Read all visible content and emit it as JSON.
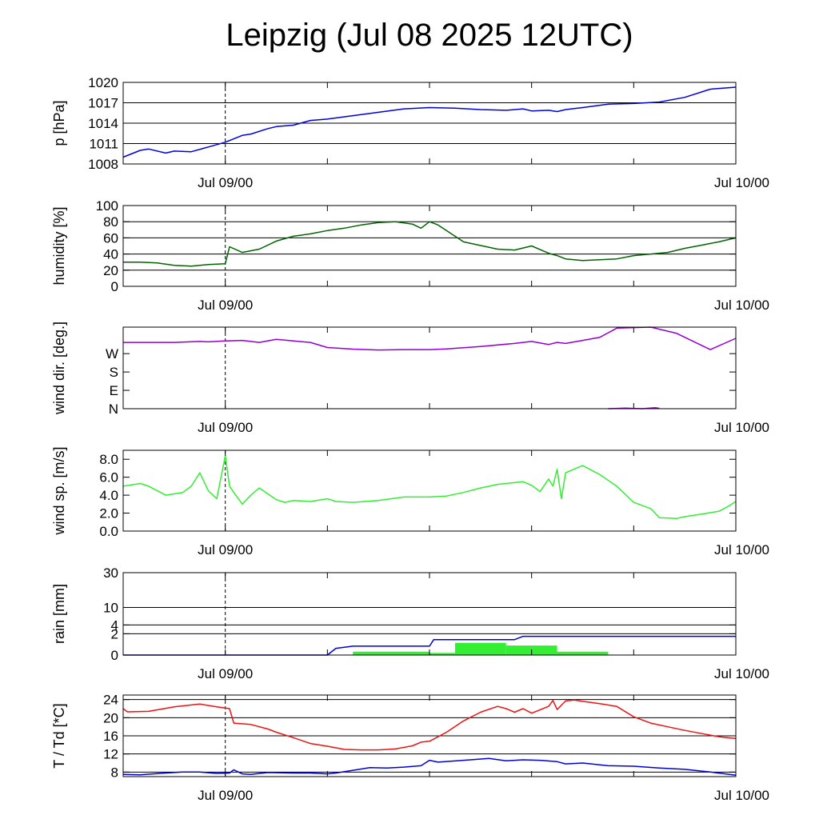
{
  "title": "Leipzig (Jul 08 2025 12UTC)",
  "x_ticks": [
    "Jul 09/00",
    "Jul 10/00"
  ],
  "colors": {
    "pressure": "#0000dd",
    "humidity": "#006400",
    "wind_dir": "#9400d3",
    "wind_speed": "#33ee33",
    "rain_bar": "#33ee33",
    "rain_line": "#0000dd",
    "temperature": "#ee1111",
    "dewpoint": "#0000dd"
  },
  "chart_data": [
    {
      "type": "line",
      "ylabel": "p [hPa]",
      "ylim": [
        1008,
        1020
      ],
      "y_ticks": [
        "1008",
        "1011",
        "1014",
        "1017",
        "1020"
      ],
      "grid": true,
      "x_hours": [
        0,
        2,
        3,
        5,
        6,
        8,
        10,
        12,
        14,
        15,
        17,
        18,
        20,
        22,
        24,
        27,
        30,
        33,
        36,
        39,
        42,
        45,
        47,
        48,
        50,
        51,
        52,
        54,
        57,
        60,
        63,
        66,
        69,
        72
      ],
      "series": [
        {
          "name": "pressure",
          "values": [
            1009.0,
            1010.0,
            1010.2,
            1009.6,
            1009.9,
            1009.8,
            1010.5,
            1011.2,
            1012.2,
            1012.4,
            1013.2,
            1013.5,
            1013.7,
            1014.4,
            1014.6,
            1015.1,
            1015.6,
            1016.1,
            1016.3,
            1016.2,
            1016.0,
            1015.9,
            1016.1,
            1015.8,
            1015.9,
            1015.7,
            1016.0,
            1016.3,
            1016.8,
            1016.9,
            1017.1,
            1017.8,
            1019.0,
            1019.3
          ]
        }
      ]
    },
    {
      "type": "line",
      "ylabel": "humidity [%]",
      "ylim": [
        0,
        100
      ],
      "y_ticks": [
        "0",
        "20",
        "40",
        "60",
        "80",
        "100"
      ],
      "grid": true,
      "x_hours": [
        0,
        2,
        4,
        6,
        8,
        10,
        12,
        12.5,
        14,
        16,
        18,
        20,
        22,
        24,
        26,
        28,
        30,
        32,
        34,
        35,
        36,
        37,
        40,
        44,
        46,
        48,
        50,
        51,
        52,
        54,
        56,
        58,
        60,
        62,
        64,
        66,
        68,
        70,
        72
      ],
      "series": [
        {
          "name": "humidity",
          "values": [
            30,
            30,
            29,
            26,
            25,
            27,
            28,
            49,
            42,
            46,
            56,
            62,
            65,
            69,
            72,
            76,
            79,
            80,
            77,
            72,
            80,
            76,
            55,
            46,
            45,
            50,
            41,
            38,
            34,
            32,
            33,
            34,
            38,
            40,
            42,
            47,
            51,
            55,
            60
          ]
        }
      ]
    },
    {
      "type": "line",
      "ylabel": "wind dir. [deg.]",
      "ylim": [
        0,
        400
      ],
      "y_ticks": [
        "N",
        "E",
        "S",
        "W"
      ],
      "grid": false,
      "x_hours": [
        0,
        5,
        6,
        9,
        10,
        12,
        14,
        16,
        18,
        20,
        22,
        24,
        27,
        30,
        33,
        36,
        38,
        42,
        46,
        48,
        50,
        51,
        52,
        54,
        56,
        58,
        62,
        65,
        68,
        69,
        72
      ],
      "series": [
        {
          "name": "wind_dir",
          "values": [
            325,
            325,
            325,
            330,
            328,
            332,
            335,
            325,
            340,
            332,
            325,
            300,
            292,
            288,
            290,
            290,
            293,
            305,
            320,
            330,
            315,
            325,
            320,
            335,
            350,
            395,
            400,
            370,
            310,
            290,
            345
          ]
        },
        {
          "name": "wind_dir_wrap",
          "x_hours": [
            57,
            59,
            61,
            62.5,
            63
          ],
          "values": [
            0,
            3,
            0,
            5,
            2
          ]
        }
      ]
    },
    {
      "type": "line",
      "ylabel": "wind sp. [m/s]",
      "ylim": [
        0,
        9
      ],
      "y_ticks": [
        "0.0",
        "2.0",
        "4.0",
        "6.0",
        "8.0"
      ],
      "grid": false,
      "x_hours": [
        0,
        2,
        3,
        5,
        7,
        8,
        9,
        10,
        11,
        12,
        12.5,
        13,
        14,
        15,
        16,
        18,
        19,
        20,
        22,
        24,
        25,
        27,
        30,
        33,
        36,
        38,
        40,
        42,
        44,
        46,
        47,
        47.5,
        48,
        49,
        50,
        50.5,
        51,
        51.5,
        52,
        54,
        56,
        58,
        60,
        62,
        63,
        65,
        66,
        68,
        70,
        71,
        72
      ],
      "series": [
        {
          "name": "wind_speed",
          "values": [
            5.0,
            5.3,
            5.0,
            4.0,
            4.3,
            5.0,
            6.5,
            4.5,
            3.6,
            8.4,
            5.0,
            4.3,
            3.0,
            4.0,
            4.8,
            3.5,
            3.2,
            3.4,
            3.3,
            3.6,
            3.3,
            3.2,
            3.4,
            3.8,
            3.8,
            3.9,
            4.3,
            4.8,
            5.2,
            5.4,
            5.5,
            5.3,
            5.1,
            4.4,
            5.8,
            5.0,
            6.9,
            3.6,
            6.5,
            7.3,
            6.3,
            5.0,
            3.2,
            2.5,
            1.5,
            1.4,
            1.6,
            1.9,
            2.2,
            2.7,
            3.3
          ]
        }
      ]
    },
    {
      "type": "bar",
      "ylabel": "rain [mm]",
      "ylim": [
        0,
        30
      ],
      "y_ticks": [
        "0",
        "2",
        "4",
        "10",
        "30"
      ],
      "grid": true,
      "bars": [
        {
          "x_start": 27,
          "x_end": 36,
          "value": 0.05
        },
        {
          "x_start": 36,
          "x_end": 39,
          "value": 0.02
        },
        {
          "x_start": 39,
          "x_end": 45,
          "value": 0.65
        },
        {
          "x_start": 45,
          "x_end": 51,
          "value": 0.4
        },
        {
          "x_start": 51,
          "x_end": 57,
          "value": 0.05
        }
      ],
      "series": [
        {
          "name": "rain_cumulative",
          "x_hours": [
            0,
            24,
            25,
            27,
            36,
            36.5,
            46,
            47,
            72
          ],
          "values": [
            0,
            0,
            0.2,
            0.35,
            0.35,
            1.05,
            1.05,
            1.55,
            1.55
          ]
        }
      ]
    },
    {
      "type": "line",
      "ylabel": "T / Td [*C]",
      "ylim": [
        7,
        25
      ],
      "y_ticks": [
        "8",
        "12",
        "16",
        "20",
        "24"
      ],
      "grid": true,
      "x_hours": [
        0,
        0.5,
        3,
        6,
        9,
        11,
        12.5,
        13,
        15,
        17,
        18,
        20,
        22,
        24,
        26,
        28,
        30,
        32,
        34,
        35,
        36,
        38,
        40,
        42,
        44,
        45,
        46,
        47,
        48,
        50,
        50.5,
        51,
        52,
        53,
        54,
        56,
        58,
        60,
        62,
        64,
        66,
        68,
        70,
        72
      ],
      "series": [
        {
          "name": "temperature",
          "values": [
            22.0,
            21.3,
            21.4,
            22.4,
            23.0,
            22.4,
            22.0,
            18.8,
            18.5,
            17.5,
            16.8,
            15.6,
            14.3,
            13.7,
            13.0,
            12.9,
            12.9,
            13.1,
            13.8,
            14.6,
            14.8,
            16.8,
            19.3,
            21.2,
            22.5,
            22.0,
            21.2,
            22.0,
            21.0,
            22.5,
            23.8,
            21.8,
            23.7,
            23.9,
            23.6,
            23.1,
            22.5,
            20.2,
            18.8,
            18.0,
            17.2,
            16.5,
            15.8,
            15.4
          ]
        },
        {
          "name": "dewpoint",
          "x_hours": [
            0,
            2,
            5,
            7,
            9,
            11,
            12.5,
            13,
            14,
            15,
            17,
            20,
            22,
            24,
            25,
            27,
            29,
            31,
            33,
            35,
            36,
            37,
            40,
            43,
            45,
            47,
            49,
            51,
            52,
            54,
            57,
            60,
            63,
            66,
            69,
            72
          ],
          "values": [
            7.5,
            7.4,
            7.8,
            8.0,
            8.0,
            7.7,
            7.8,
            8.5,
            7.6,
            7.5,
            7.9,
            7.8,
            7.8,
            7.6,
            7.8,
            8.4,
            9.0,
            8.9,
            9.1,
            9.4,
            10.6,
            10.2,
            10.6,
            11.0,
            10.5,
            10.7,
            10.6,
            10.3,
            9.8,
            10.0,
            9.4,
            9.3,
            8.9,
            8.6,
            8.0,
            7.3
          ]
        }
      ]
    }
  ]
}
